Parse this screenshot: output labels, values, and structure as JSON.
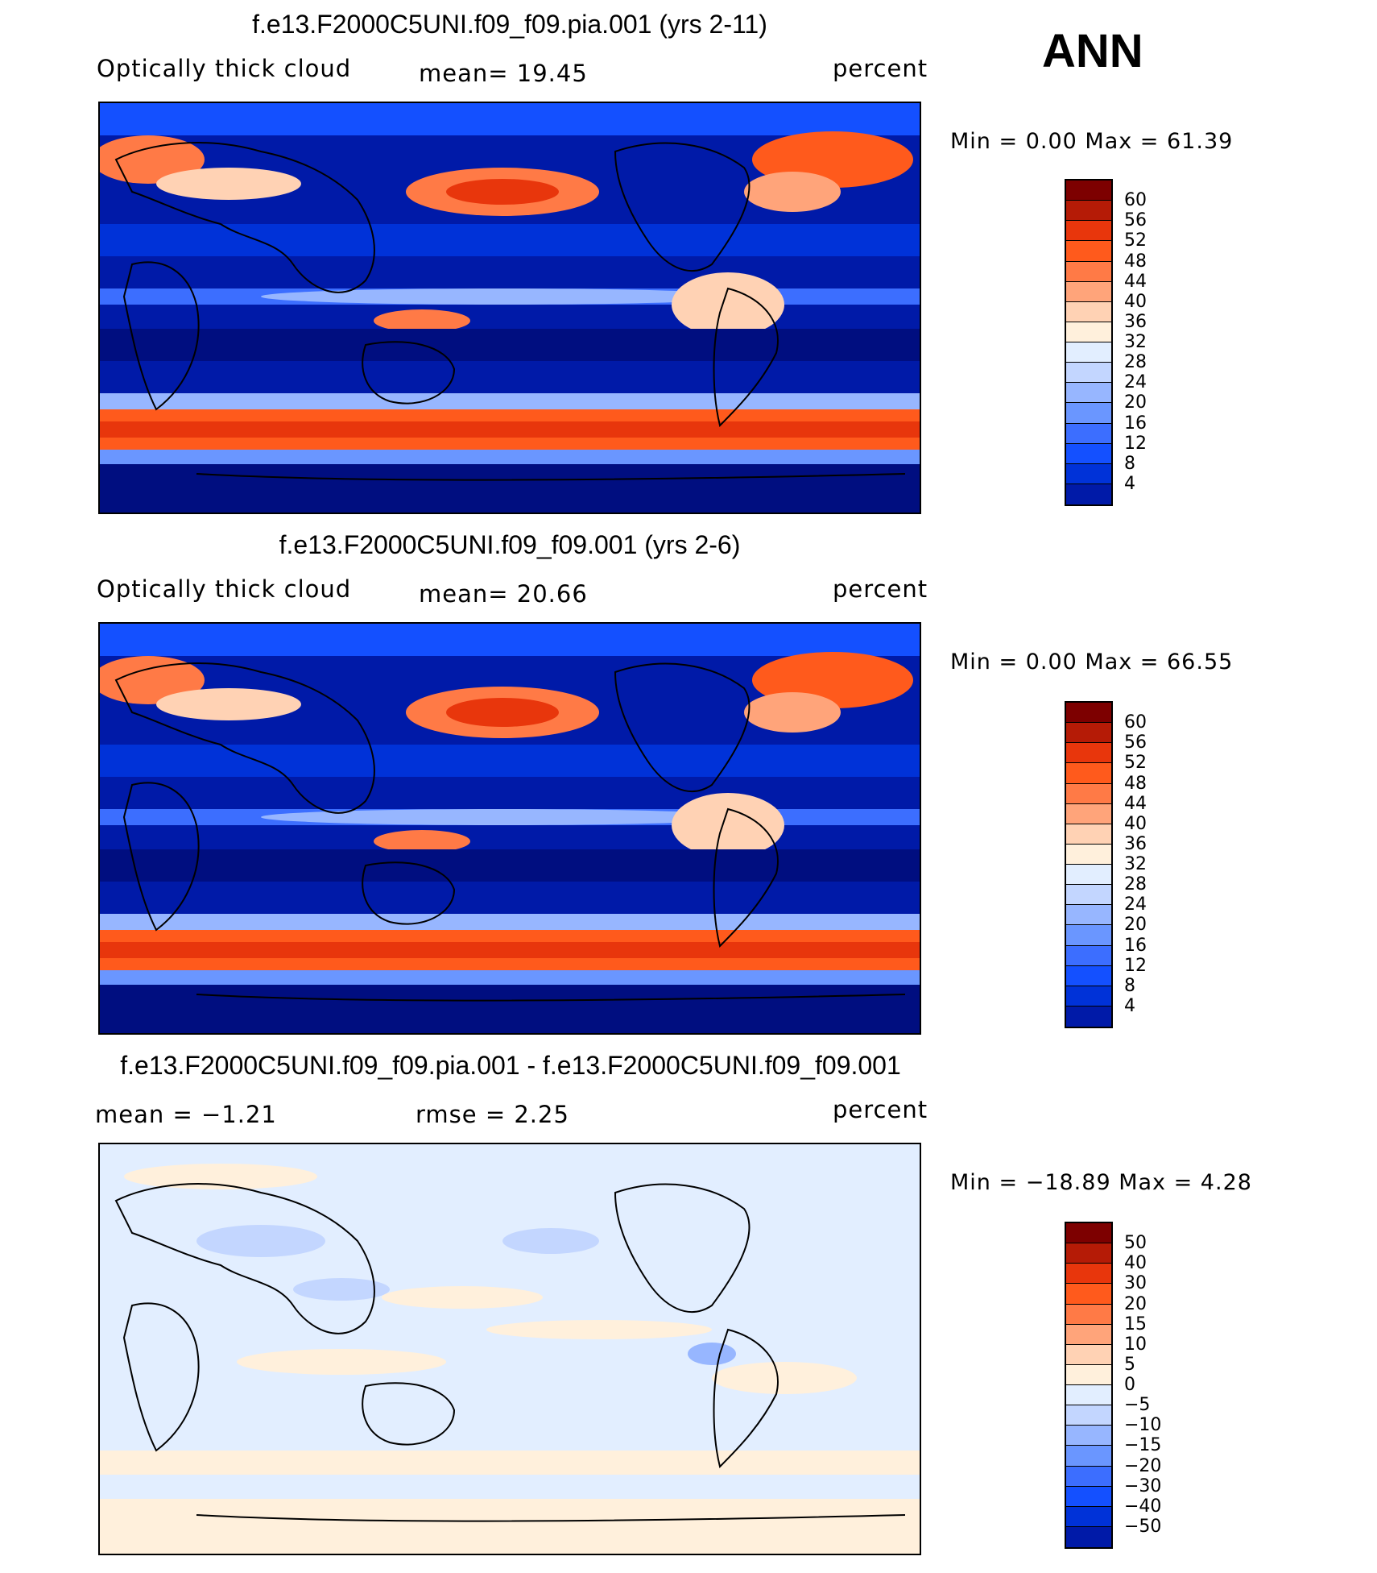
{
  "season": "ANN",
  "colors": {
    "abs_scale": [
      "#000e80",
      "#001aa8",
      "#0032d8",
      "#1450ff",
      "#3c6eff",
      "#6a96ff",
      "#97b6ff",
      "#c3d6ff",
      "#e2eeff",
      "#fff0dc",
      "#ffd2b4",
      "#ffa47a",
      "#ff7a46",
      "#ff5a1c",
      "#e8360c",
      "#b51b06",
      "#7d0000"
    ],
    "diff_scale": [
      "#000e80",
      "#001aa8",
      "#0032d8",
      "#1450ff",
      "#3c6eff",
      "#6a96ff",
      "#97b6ff",
      "#c3d6ff",
      "#e2eeff",
      "#fff0dc",
      "#ffd2b4",
      "#ffa47a",
      "#ff7a46",
      "#ff5a1c",
      "#e8360c",
      "#b51b06",
      "#7d0000"
    ]
  },
  "panels": [
    {
      "title": "f.e13.F2000C5UNI.f09_f09.pia.001 (yrs 2-11)",
      "variable": "Optically  thick  cloud",
      "stat_text": "mean=   19.45",
      "units": "percent",
      "minmax_text": "Min  =      0.00  Max  =     61.39",
      "colorbar_labels": [
        "60",
        "56",
        "52",
        "48",
        "44",
        "40",
        "36",
        "32",
        "28",
        "24",
        "20",
        "16",
        "12",
        "8",
        "4"
      ]
    },
    {
      "title": "f.e13.F2000C5UNI.f09_f09.001 (yrs 2-6)",
      "variable": "Optically  thick  cloud",
      "stat_text": "mean=   20.66",
      "units": "percent",
      "minmax_text": "Min  =      0.00  Max  =     66.55",
      "colorbar_labels": [
        "60",
        "56",
        "52",
        "48",
        "44",
        "40",
        "36",
        "32",
        "28",
        "24",
        "20",
        "16",
        "12",
        "8",
        "4"
      ]
    },
    {
      "title": "f.e13.F2000C5UNI.f09_f09.pia.001 - f.e13.F2000C5UNI.f09_f09.001",
      "stat_left": "mean  =    −1.21",
      "stat_text": "rmse  =      2.25",
      "units": "percent",
      "minmax_text": "Min  =  −18.89  Max  =      4.28",
      "colorbar_labels": [
        "50",
        "40",
        "30",
        "20",
        "15",
        "10",
        "5",
        "0",
        "−5",
        "−10",
        "−15",
        "−20",
        "−30",
        "−40",
        "−50"
      ]
    }
  ]
}
